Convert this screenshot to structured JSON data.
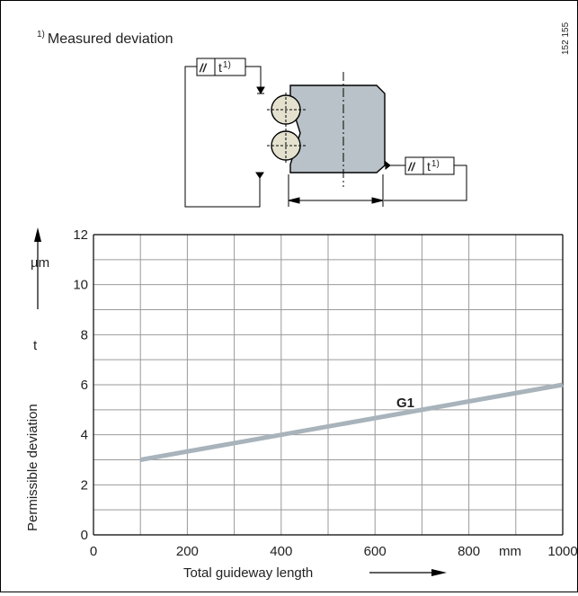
{
  "footnote": {
    "marker": "1)",
    "text": "Measured deviation"
  },
  "drawing_code": "152 155",
  "tolerance_frame": {
    "symbol": "//",
    "value": "t",
    "sup": "1)"
  },
  "colors": {
    "grid": "#9a9a9a",
    "line": "#a8b3bb",
    "block": "#b9c2c8",
    "ball": "#e4e2cf"
  },
  "chart_data": {
    "type": "line",
    "xlabel": "Total guideway length",
    "x_unit": "mm",
    "ylabel": "Permissible deviation",
    "y_symbol": "t",
    "y_unit": "µm",
    "xlim": [
      0,
      1000
    ],
    "ylim": [
      0,
      12
    ],
    "x_ticks": [
      0,
      200,
      400,
      600,
      800,
      1000
    ],
    "y_ticks": [
      0,
      2,
      4,
      6,
      8,
      10,
      12
    ],
    "grid": true,
    "series": [
      {
        "name": "G1",
        "x": [
          100,
          1000
        ],
        "y": [
          3.0,
          6.0
        ]
      }
    ]
  }
}
